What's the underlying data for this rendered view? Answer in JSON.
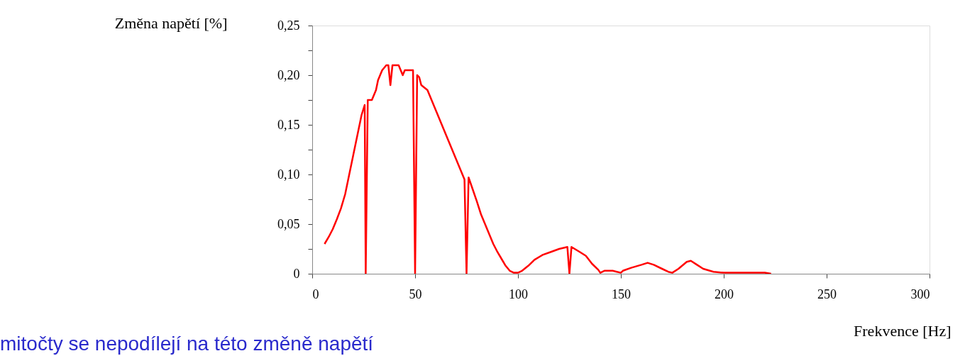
{
  "chart_data": {
    "type": "line",
    "ylabel": "Změna napětí  [%]",
    "xlabel": "Frekvence [Hz]",
    "annotations": [
      "mitočty se nepodílejí na této změně napětí"
    ],
    "x": [
      6,
      8,
      10,
      12,
      14,
      16,
      18,
      20,
      22,
      24,
      25.5,
      26,
      27,
      29,
      31,
      32,
      34,
      36,
      37,
      38,
      39,
      42,
      44,
      45,
      47,
      49,
      50,
      51,
      52,
      53,
      56,
      58,
      60,
      62,
      64,
      66,
      68,
      70,
      72,
      74,
      75,
      76,
      78,
      80,
      82,
      84,
      86,
      88,
      90,
      92,
      94,
      96,
      98,
      100,
      102,
      105,
      108,
      112,
      116,
      120,
      124,
      125,
      126,
      130,
      133,
      136,
      139,
      140,
      142,
      146,
      148,
      150,
      151,
      155,
      160,
      163,
      166,
      170,
      173,
      175,
      178,
      182,
      184,
      187,
      190,
      195,
      200,
      210,
      220,
      223
    ],
    "series": [
      {
        "color": "#ff0000",
        "values": [
          0.03,
          0.037,
          0.045,
          0.055,
          0.066,
          0.08,
          0.1,
          0.12,
          0.14,
          0.16,
          0.17,
          0,
          0.175,
          0.175,
          0.185,
          0.195,
          0.205,
          0.21,
          0.21,
          0.19,
          0.21,
          0.21,
          0.2,
          0.205,
          0.205,
          0.205,
          0,
          0.2,
          0.198,
          0.19,
          0.185,
          0.175,
          0.165,
          0.155,
          0.145,
          0.135,
          0.125,
          0.115,
          0.105,
          0.095,
          0,
          0.097,
          0.085,
          0.073,
          0.06,
          0.05,
          0.04,
          0.03,
          0.022,
          0.015,
          0.008,
          0.003,
          0.001,
          0.001,
          0.003,
          0.008,
          0.014,
          0.019,
          0.022,
          0.025,
          0.027,
          0,
          0.027,
          0.022,
          0.018,
          0.01,
          0.004,
          0.001,
          0.003,
          0.003,
          0.002,
          0.001,
          0.003,
          0.006,
          0.009,
          0.011,
          0.009,
          0.005,
          0.002,
          0.001,
          0.005,
          0.012,
          0.013,
          0.009,
          0.005,
          0.002,
          0.001,
          0.001,
          0.001,
          0
        ]
      }
    ],
    "xlim": [
      0,
      300
    ],
    "xticks": [
      0,
      50,
      100,
      150,
      200,
      250,
      300
    ],
    "ylim": [
      0,
      0.25
    ],
    "yticks": [
      0,
      {
        "value": 0.025,
        "label": null
      },
      {
        "value": 0.05,
        "label": "0,05"
      },
      {
        "value": 0.075,
        "label": null
      },
      {
        "value": 0.1,
        "label": "0,10"
      },
      {
        "value": 0.125,
        "label": null
      },
      {
        "value": 0.15,
        "label": "0,15"
      },
      {
        "value": 0.175,
        "label": null
      },
      {
        "value": 0.2,
        "label": "0,20"
      },
      {
        "value": 0.225,
        "label": null
      },
      {
        "value": 0.25,
        "label": "0,25"
      }
    ],
    "grid": false,
    "marker": "none",
    "line_style": "solid"
  }
}
